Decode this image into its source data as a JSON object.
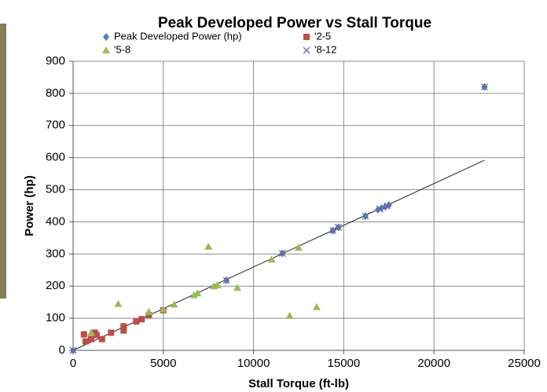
{
  "chart_data": {
    "type": "scatter",
    "title": "Peak Developed Power vs Stall Torque",
    "x_label": "Stall Torque (ft-lb)",
    "y_label": "Power (hp)",
    "xlim": [
      0,
      25000
    ],
    "xticks": [
      0,
      5000,
      10000,
      15000,
      20000,
      25000
    ],
    "ylim": [
      0,
      900
    ],
    "yticks": [
      0,
      100,
      200,
      300,
      400,
      500,
      600,
      700,
      800,
      900
    ],
    "grid": true,
    "legend": "top",
    "series": [
      {
        "name": "Peak Developed Power (hp)",
        "color": "#4a7ebb",
        "marker": "diamond",
        "x": [
          0,
          8500,
          11600,
          14400,
          14700,
          16200,
          16900,
          17100,
          17300,
          17500,
          22800
        ],
        "values": [
          0,
          218,
          302,
          373,
          383,
          418,
          438,
          443,
          447,
          452,
          820
        ]
      },
      {
        "name": "'2-5",
        "color": "#be4b48",
        "marker": "square",
        "x": [
          600,
          700,
          1000,
          1200,
          1300,
          1600,
          2100,
          2800,
          2800,
          3500,
          3800,
          4200,
          5000
        ],
        "values": [
          50,
          28,
          35,
          55,
          48,
          35,
          55,
          62,
          75,
          90,
          97,
          110,
          125
        ]
      },
      {
        "name": "'5-8",
        "color": "#9bbb59",
        "marker": "triangle",
        "x": [
          1000,
          2500,
          4200,
          5000,
          5600,
          6700,
          6900,
          7500,
          7800,
          8000,
          9100,
          11000,
          12000,
          12500,
          13500
        ],
        "values": [
          55,
          145,
          120,
          128,
          143,
          172,
          178,
          323,
          200,
          203,
          195,
          283,
          108,
          320,
          135
        ]
      },
      {
        "name": "'8-12",
        "color": "#7d60a0",
        "marker": "x",
        "x": [
          0,
          8500,
          11600,
          14400,
          14700,
          16200,
          17000,
          17400,
          22800
        ],
        "values": [
          0,
          218,
          302,
          373,
          383,
          418,
          440,
          450,
          820
        ]
      }
    ],
    "trendline": {
      "color": "#222222",
      "x": [
        0,
        22800
      ],
      "values": [
        0,
        592
      ]
    }
  }
}
